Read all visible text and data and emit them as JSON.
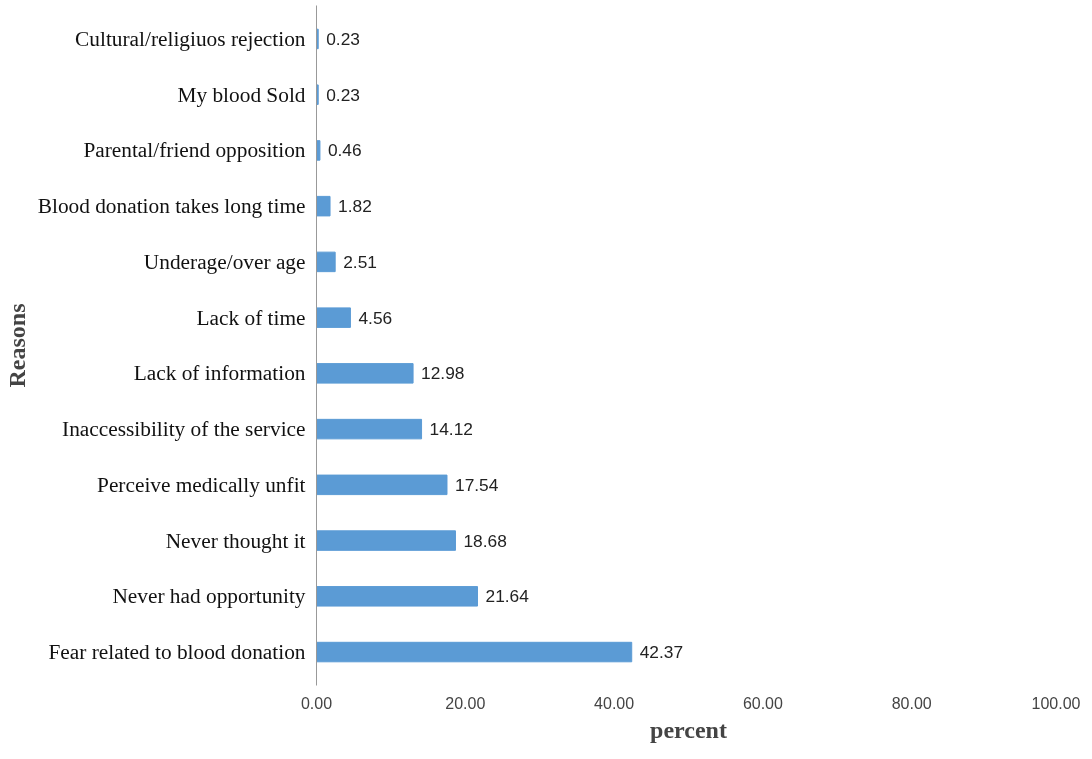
{
  "chart_data": {
    "type": "bar",
    "orientation": "horizontal",
    "xlabel": "percent",
    "ylabel": "Reasons",
    "categories": [
      "Cultural/religiuos rejection",
      "My blood Sold",
      "Parental/friend opposition",
      "Blood donation takes long time",
      "Underage/over age",
      "Lack of time",
      "Lack of information",
      "Inaccessibility of the service",
      "Perceive medically unfit",
      "Never thought it",
      "Never had opportunity",
      "Fear related to blood donation"
    ],
    "values": [
      0.23,
      0.23,
      0.46,
      1.82,
      2.51,
      4.56,
      12.98,
      14.12,
      17.54,
      18.68,
      21.64,
      42.37
    ],
    "color": "#5b9bd5",
    "data_labels": true,
    "grid": false,
    "xlim": [
      0,
      100
    ],
    "xticks": [
      {
        "value": 0,
        "label": "0.00"
      },
      {
        "value": 20,
        "label": "20.00"
      },
      {
        "value": 40,
        "label": "40.00"
      },
      {
        "value": 60,
        "label": "60.00"
      },
      {
        "value": 80,
        "label": "80.00"
      },
      {
        "value": 100,
        "label": "100.00"
      }
    ]
  }
}
